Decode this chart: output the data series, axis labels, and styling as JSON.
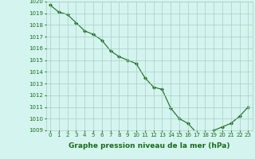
{
  "x": [
    0,
    1,
    2,
    3,
    4,
    5,
    6,
    7,
    8,
    9,
    10,
    11,
    12,
    13,
    14,
    15,
    16,
    17,
    18,
    19,
    20,
    21,
    22,
    23
  ],
  "y": [
    1019.7,
    1019.1,
    1018.9,
    1018.2,
    1017.5,
    1017.2,
    1016.7,
    1015.8,
    1015.3,
    1015.0,
    1014.7,
    1013.5,
    1012.7,
    1012.5,
    1010.9,
    1010.0,
    1009.6,
    1008.8,
    1008.8,
    1009.0,
    1009.3,
    1009.6,
    1010.2,
    1011.0
  ],
  "line_color": "#1a6b1a",
  "marker": "D",
  "marker_size": 2.0,
  "marker_color": "#1a6b1a",
  "bg_color": "#d4f5ef",
  "grid_color": "#aaccc5",
  "xlabel": "Graphe pression niveau de la mer (hPa)",
  "xlabel_fontsize": 6.5,
  "xlabel_bold": true,
  "ylim": [
    1009,
    1020
  ],
  "xlim": [
    -0.5,
    23.5
  ],
  "yticks": [
    1009,
    1010,
    1011,
    1012,
    1013,
    1014,
    1015,
    1016,
    1017,
    1018,
    1019,
    1020
  ],
  "xticks": [
    0,
    1,
    2,
    3,
    4,
    5,
    6,
    7,
    8,
    9,
    10,
    11,
    12,
    13,
    14,
    15,
    16,
    17,
    18,
    19,
    20,
    21,
    22,
    23
  ],
  "tick_fontsize": 5.0,
  "line_width": 0.8
}
